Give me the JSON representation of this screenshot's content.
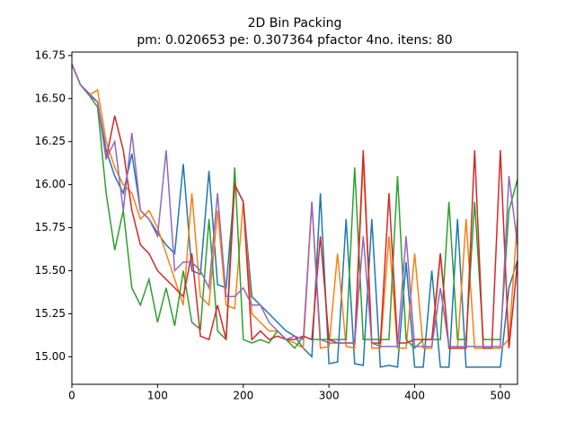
{
  "chart_data": {
    "type": "line",
    "title": "2D Bin Packing",
    "subtitle": "pm: 0.020653 pe: 0.307364 pfactor 4no. itens: 80",
    "x": [
      0,
      10,
      20,
      30,
      40,
      50,
      60,
      70,
      80,
      90,
      100,
      110,
      120,
      130,
      140,
      150,
      160,
      170,
      180,
      190,
      200,
      210,
      220,
      230,
      240,
      250,
      260,
      270,
      280,
      290,
      300,
      310,
      320,
      330,
      340,
      350,
      360,
      370,
      380,
      390,
      400,
      410,
      420,
      430,
      440,
      450,
      460,
      470,
      480,
      490,
      500,
      510,
      520
    ],
    "series": [
      {
        "color": "#1f77b4",
        "values": [
          16.7,
          16.58,
          16.53,
          16.48,
          16.2,
          16.05,
          15.95,
          16.18,
          15.85,
          15.8,
          15.72,
          15.65,
          15.6,
          16.12,
          15.5,
          15.48,
          16.08,
          15.42,
          15.4,
          16.0,
          15.9,
          15.35,
          15.3,
          15.25,
          15.2,
          15.15,
          15.12,
          15.05,
          15.0,
          15.95,
          14.96,
          14.97,
          15.8,
          14.96,
          14.95,
          15.8,
          14.94,
          14.95,
          14.94,
          15.55,
          14.94,
          14.94,
          15.5,
          14.94,
          14.94,
          15.8,
          14.94,
          14.94,
          14.94,
          14.94,
          14.94,
          15.4,
          15.56
        ]
      },
      {
        "color": "#ff7f0e",
        "values": [
          16.7,
          16.58,
          16.52,
          16.55,
          16.25,
          16.1,
          16.0,
          15.95,
          15.8,
          15.85,
          15.75,
          15.6,
          15.45,
          15.3,
          15.95,
          15.35,
          15.3,
          15.85,
          15.3,
          15.28,
          15.9,
          15.25,
          15.2,
          15.15,
          15.15,
          15.1,
          15.08,
          15.05,
          15.9,
          15.05,
          15.06,
          15.6,
          15.06,
          15.05,
          16.15,
          15.05,
          15.05,
          15.7,
          15.05,
          15.05,
          15.6,
          15.05,
          15.05,
          15.6,
          15.05,
          15.05,
          15.8,
          15.05,
          15.05,
          15.05,
          15.05,
          15.1,
          15.8
        ]
      },
      {
        "color": "#2ca02c",
        "values": [
          16.7,
          16.58,
          16.52,
          16.45,
          15.95,
          15.62,
          15.85,
          15.4,
          15.3,
          15.45,
          15.2,
          15.4,
          15.18,
          15.5,
          15.2,
          15.16,
          15.8,
          15.15,
          15.1,
          16.1,
          15.1,
          15.08,
          15.1,
          15.08,
          15.15,
          15.1,
          15.05,
          15.12,
          15.1,
          15.1,
          15.1,
          15.1,
          15.1,
          16.1,
          15.1,
          15.1,
          15.1,
          15.1,
          16.05,
          15.1,
          15.05,
          15.1,
          15.1,
          15.1,
          15.9,
          15.1,
          15.1,
          15.9,
          15.1,
          15.1,
          15.1,
          15.85,
          16.03
        ]
      },
      {
        "color": "#d62728",
        "values": [
          16.7,
          16.58,
          16.52,
          16.48,
          16.15,
          16.4,
          16.2,
          15.85,
          15.65,
          15.6,
          15.5,
          15.45,
          15.4,
          15.35,
          15.6,
          15.12,
          15.1,
          15.3,
          15.1,
          16.0,
          15.9,
          15.1,
          15.15,
          15.1,
          15.12,
          15.1,
          15.1,
          15.12,
          15.1,
          15.7,
          15.1,
          15.08,
          15.08,
          15.08,
          16.2,
          15.08,
          15.08,
          15.95,
          15.08,
          15.08,
          15.1,
          15.1,
          15.1,
          15.6,
          15.05,
          15.05,
          15.05,
          16.2,
          15.05,
          15.05,
          16.2,
          15.05,
          15.55
        ]
      },
      {
        "color": "#9467bd",
        "values": [
          16.7,
          16.58,
          16.52,
          16.48,
          16.15,
          16.25,
          15.85,
          16.3,
          15.85,
          15.8,
          15.7,
          16.2,
          15.5,
          15.55,
          15.55,
          15.5,
          15.4,
          15.95,
          15.35,
          15.35,
          15.4,
          15.3,
          15.3,
          15.2,
          15.15,
          15.1,
          15.12,
          15.1,
          15.9,
          15.1,
          15.08,
          15.08,
          15.08,
          15.08,
          15.7,
          15.08,
          15.06,
          15.06,
          15.06,
          15.7,
          15.06,
          15.06,
          15.06,
          15.4,
          15.06,
          15.06,
          15.06,
          15.06,
          15.06,
          15.06,
          15.06,
          16.05,
          15.65
        ]
      }
    ],
    "xlim": [
      0,
      520
    ],
    "xticks": [
      0,
      100,
      200,
      300,
      400,
      500
    ],
    "ylim": [
      14.84,
      16.77
    ],
    "yticks": [
      {
        "value": 15,
        "label": "15.00"
      },
      {
        "value": 15.25,
        "label": "15.25"
      },
      {
        "value": 15.5,
        "label": "15.50"
      },
      {
        "value": 15.75,
        "label": "15.75"
      },
      {
        "value": 16,
        "label": "16.00"
      },
      {
        "value": 16.25,
        "label": "16.25"
      },
      {
        "value": 16.5,
        "label": "16.50"
      },
      {
        "value": 16.75,
        "label": "16.75"
      }
    ],
    "grid": false
  }
}
